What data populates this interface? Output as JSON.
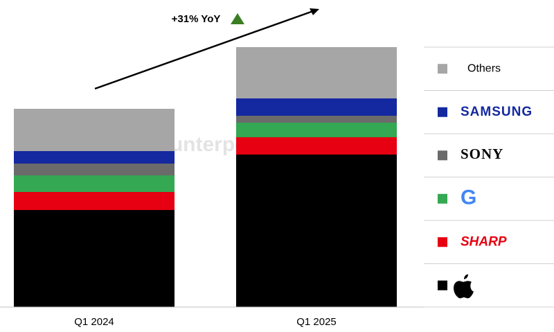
{
  "chart_data": {
    "type": "stacked-bar",
    "categories": [
      "Q1 2024",
      "Q1 2025"
    ],
    "series": [
      {
        "color": "#000000",
        "values": [
          140,
          220
        ]
      },
      {
        "name": "SHARP",
        "color": "#e60012",
        "values": [
          26,
          25
        ]
      },
      {
        "name": "G",
        "color": "#34a853",
        "values": [
          24,
          21
        ]
      },
      {
        "name": "SONY",
        "color": "#6b6b6b",
        "values": [
          17,
          10
        ]
      },
      {
        "name": "SAMSUNG",
        "color": "#1428a0",
        "values": [
          18,
          25
        ]
      },
      {
        "name": "Others",
        "color": "#a6a6a6",
        "values": [
          61,
          74
        ]
      }
    ],
    "ylim": [
      0,
      400
    ],
    "annotation": "+31% YoY",
    "watermark": "Counterpoint"
  }
}
